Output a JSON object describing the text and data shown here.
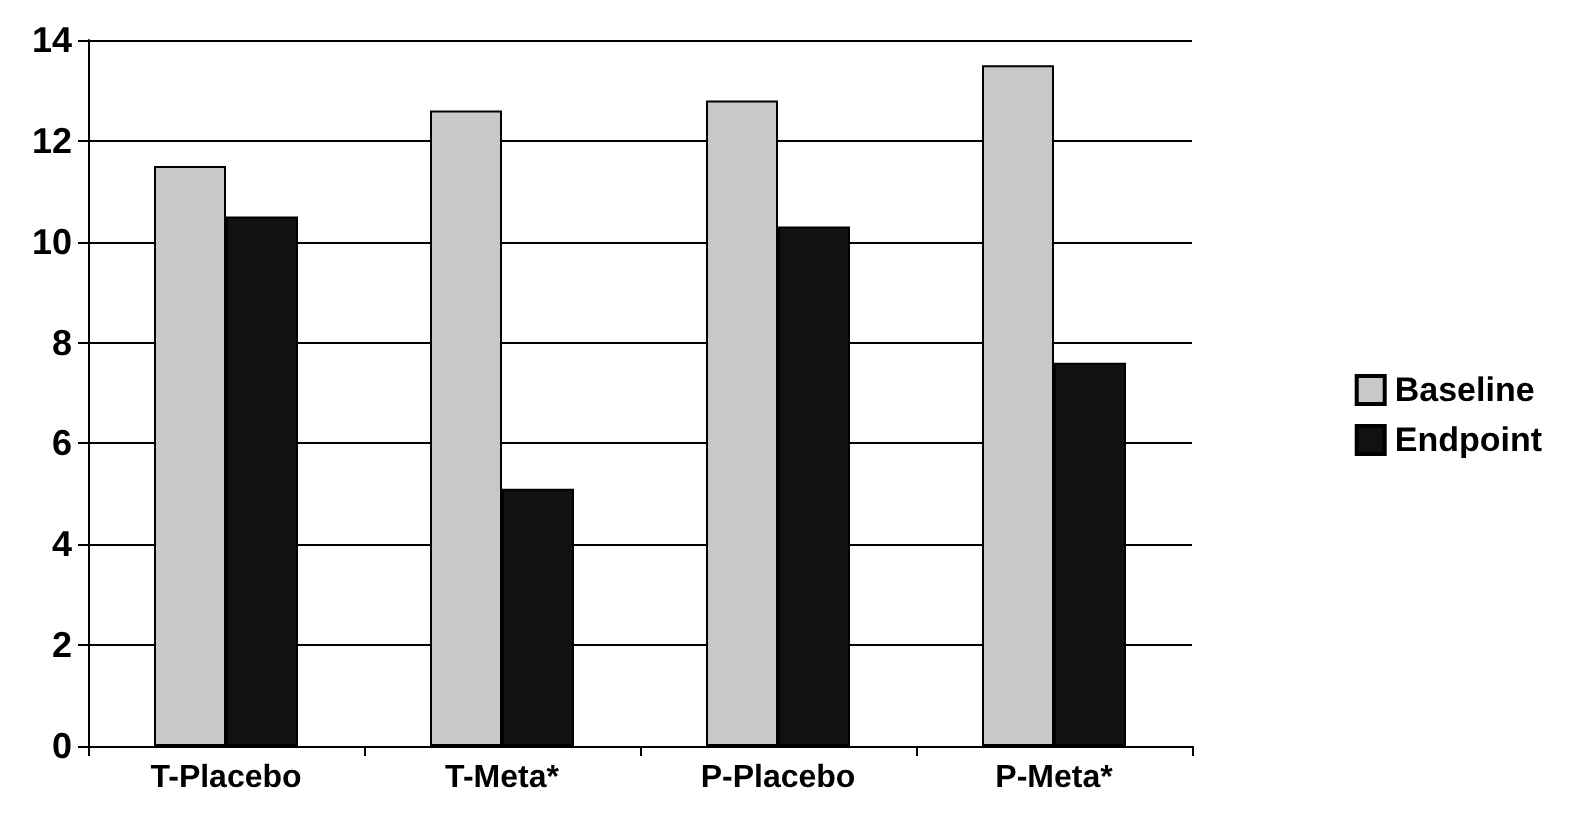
{
  "chart_data": {
    "type": "bar",
    "categories": [
      "T-Placebo",
      "T-Meta*",
      "P-Placebo",
      "P-Meta*"
    ],
    "series": [
      {
        "name": "Baseline",
        "color": "#c8c8c8",
        "values": [
          11.5,
          12.6,
          12.8,
          13.5
        ]
      },
      {
        "name": "Endpoint",
        "color": "#111111",
        "values": [
          10.5,
          5.1,
          10.3,
          7.6
        ]
      }
    ],
    "ylim": [
      0,
      14
    ],
    "yticks": [
      0,
      2,
      4,
      6,
      8,
      10,
      12,
      14
    ],
    "grid": "y",
    "legend": "right"
  }
}
